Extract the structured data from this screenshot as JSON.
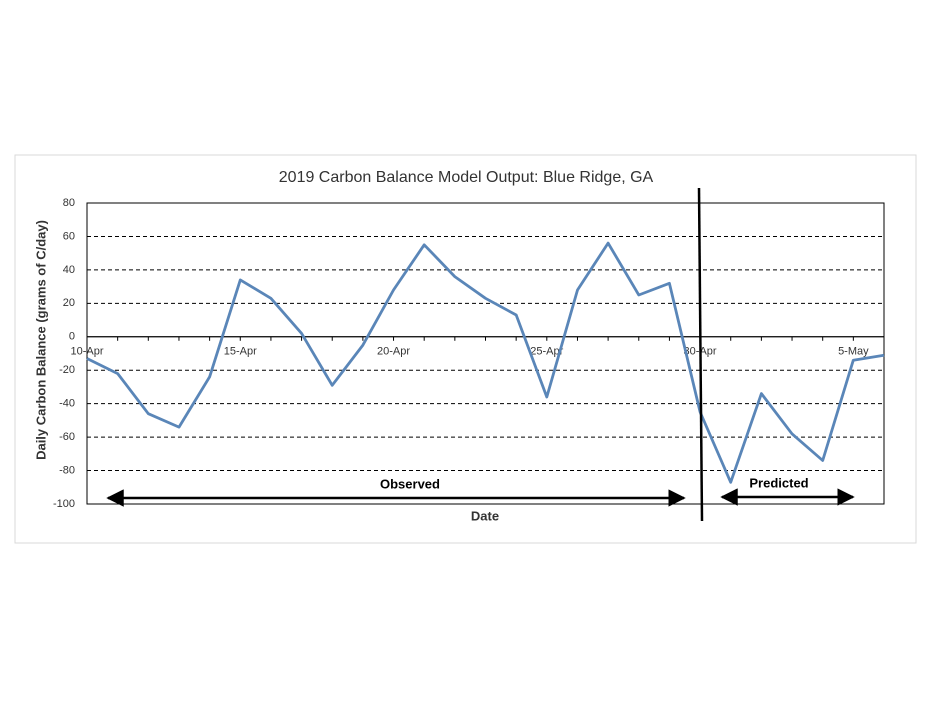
{
  "chart_data": {
    "type": "line",
    "title": "2019 Carbon Balance Model Output: Blue Ridge, GA",
    "x_label": "Date",
    "y_label": "Daily Carbon Balance (grams of C/day)",
    "categories": [
      "10-Apr",
      null,
      null,
      null,
      null,
      "15-Apr",
      null,
      null,
      null,
      null,
      "20-Apr",
      null,
      null,
      null,
      null,
      "25-Apr",
      null,
      null,
      null,
      null,
      "30-Apr",
      null,
      null,
      null,
      null,
      "5-May",
      null
    ],
    "series": [
      {
        "name": "Daily Carbon Balance",
        "color": "#5a86b8",
        "values": [
          -13,
          -22,
          -46,
          -54,
          -24,
          34,
          23,
          2,
          -29,
          -5,
          28,
          55,
          36,
          23,
          13,
          -36,
          28,
          56,
          25,
          32,
          -45,
          -87,
          -34,
          -58,
          -74,
          -14,
          -11
        ]
      }
    ],
    "ylim": [
      -100,
      80
    ],
    "yticks": [
      -100,
      -80,
      -60,
      -40,
      -20,
      0,
      20,
      40,
      60,
      80
    ],
    "grid": true,
    "annotations": [
      {
        "text": "Observed"
      },
      {
        "text": "Predicted"
      }
    ]
  }
}
